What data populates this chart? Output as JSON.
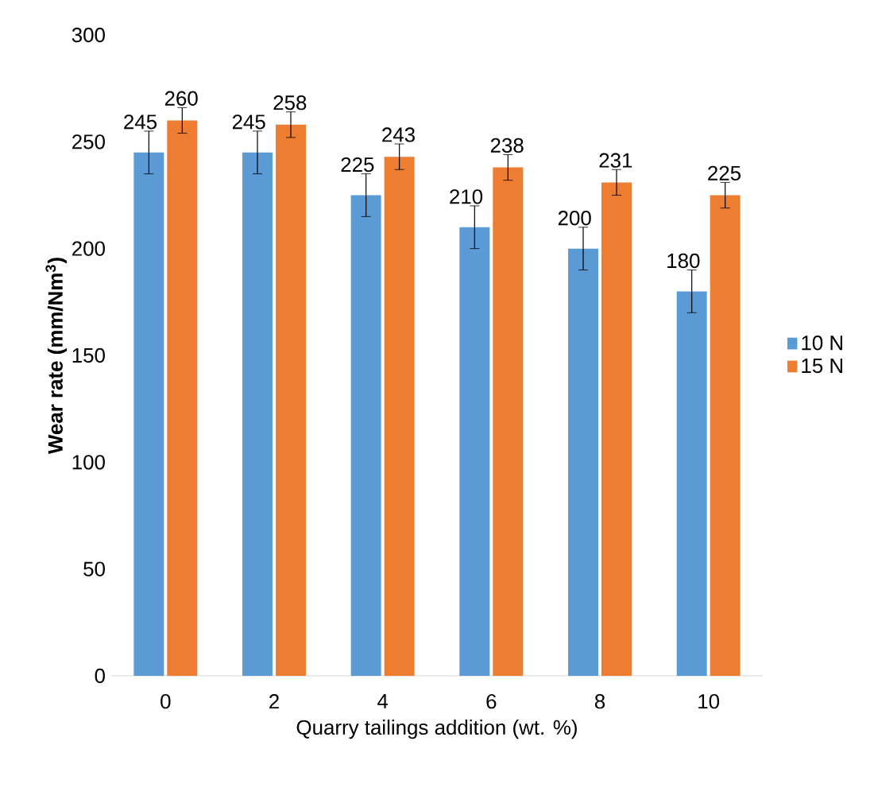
{
  "chart_data": {
    "type": "bar",
    "xlabel": "Quarry tailings addition (wt. %)",
    "ylabel": "**Wear rate (mm/Nm$^{3}$)**",
    "categories": [
      "0",
      "2",
      "4",
      "6",
      "8",
      "10"
    ],
    "series": [
      {
        "name": "10 N",
        "color": "#5b9bd5",
        "values": [
          245,
          245,
          225,
          210,
          200,
          180
        ],
        "errors": [
          10,
          10,
          10,
          10,
          10,
          10
        ]
      },
      {
        "name": "15 N",
        "color": "#ed7d31",
        "values": [
          260,
          258,
          243,
          238,
          231,
          225
        ],
        "errors": [
          6,
          6,
          6,
          6,
          6,
          6
        ]
      }
    ],
    "ylim": [
      0,
      300
    ],
    "yticks": [
      0,
      50,
      100,
      150,
      200,
      250,
      300
    ],
    "data_labels": true,
    "legend": "right",
    "grid": false
  }
}
